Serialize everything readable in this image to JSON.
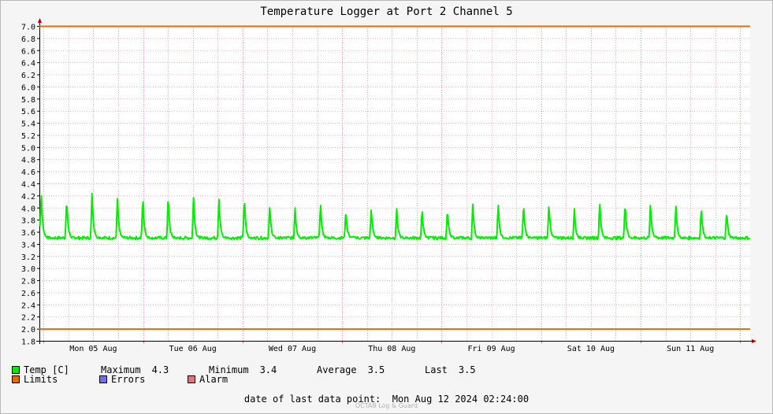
{
  "chart_data": {
    "type": "line",
    "title": "Temperature Logger at Port 2 Channel 5",
    "ylim": [
      1.8,
      7.0
    ],
    "yticks": [
      "1.8",
      "2.0",
      "2.2",
      "2.4",
      "2.6",
      "2.8",
      "3.0",
      "3.2",
      "3.4",
      "3.6",
      "3.8",
      "4.0",
      "4.2",
      "4.4",
      "4.6",
      "4.8",
      "5.0",
      "5.2",
      "5.4",
      "5.6",
      "5.8",
      "6.0",
      "6.2",
      "6.4",
      "6.6",
      "6.8",
      "7.0"
    ],
    "x_tick_labels": [
      "Mon 05 Aug",
      "Tue 06 Aug",
      "Wed 07 Aug",
      "Thu 08 Aug",
      "Fri 09 Aug",
      "Sat 10 Aug",
      "Sun 11 Aug"
    ],
    "x_start": "2024-08-04 23:00",
    "x_end": "2024-08-12 02:24",
    "grid": true,
    "series": [
      {
        "name": "Temp [C]",
        "color": "#00ee00",
        "baseline": 3.5,
        "spike_peaks": [
          4.3,
          4.18,
          4.31,
          4.19,
          4.22,
          4.23,
          4.2,
          4.2,
          4.19,
          4.08,
          4.0,
          4.09,
          4.0,
          4.01,
          4.0,
          3.99,
          3.98,
          4.09,
          4.08,
          4.1,
          4.1,
          3.99,
          4.12,
          4.13,
          4.1,
          4.04,
          4.03,
          3.96
        ]
      }
    ],
    "limits": [
      2.0,
      7.0
    ],
    "limits_color": "#ee6600"
  },
  "legend": {
    "temp": {
      "label": "Temp [C]",
      "color": "#00ee00"
    },
    "stats": {
      "max_label": "Maximum",
      "max_value": "4.3",
      "min_label": "Minimum",
      "min_value": "3.4",
      "avg_label": "Average",
      "avg_value": "3.5",
      "last_label": "Last",
      "last_value": "3.5"
    },
    "limits": {
      "label": "Limits",
      "color": "#ee6600"
    },
    "errors": {
      "label": "Errors",
      "color": "#6f6ff0"
    },
    "alarm": {
      "label": "Alarm",
      "color": "#f07070"
    }
  },
  "footer": {
    "label": "date of last data point:",
    "value": "Mon Aug 12 2024 02:24:00"
  },
  "watermark": "OCTA8 Log & Guard"
}
